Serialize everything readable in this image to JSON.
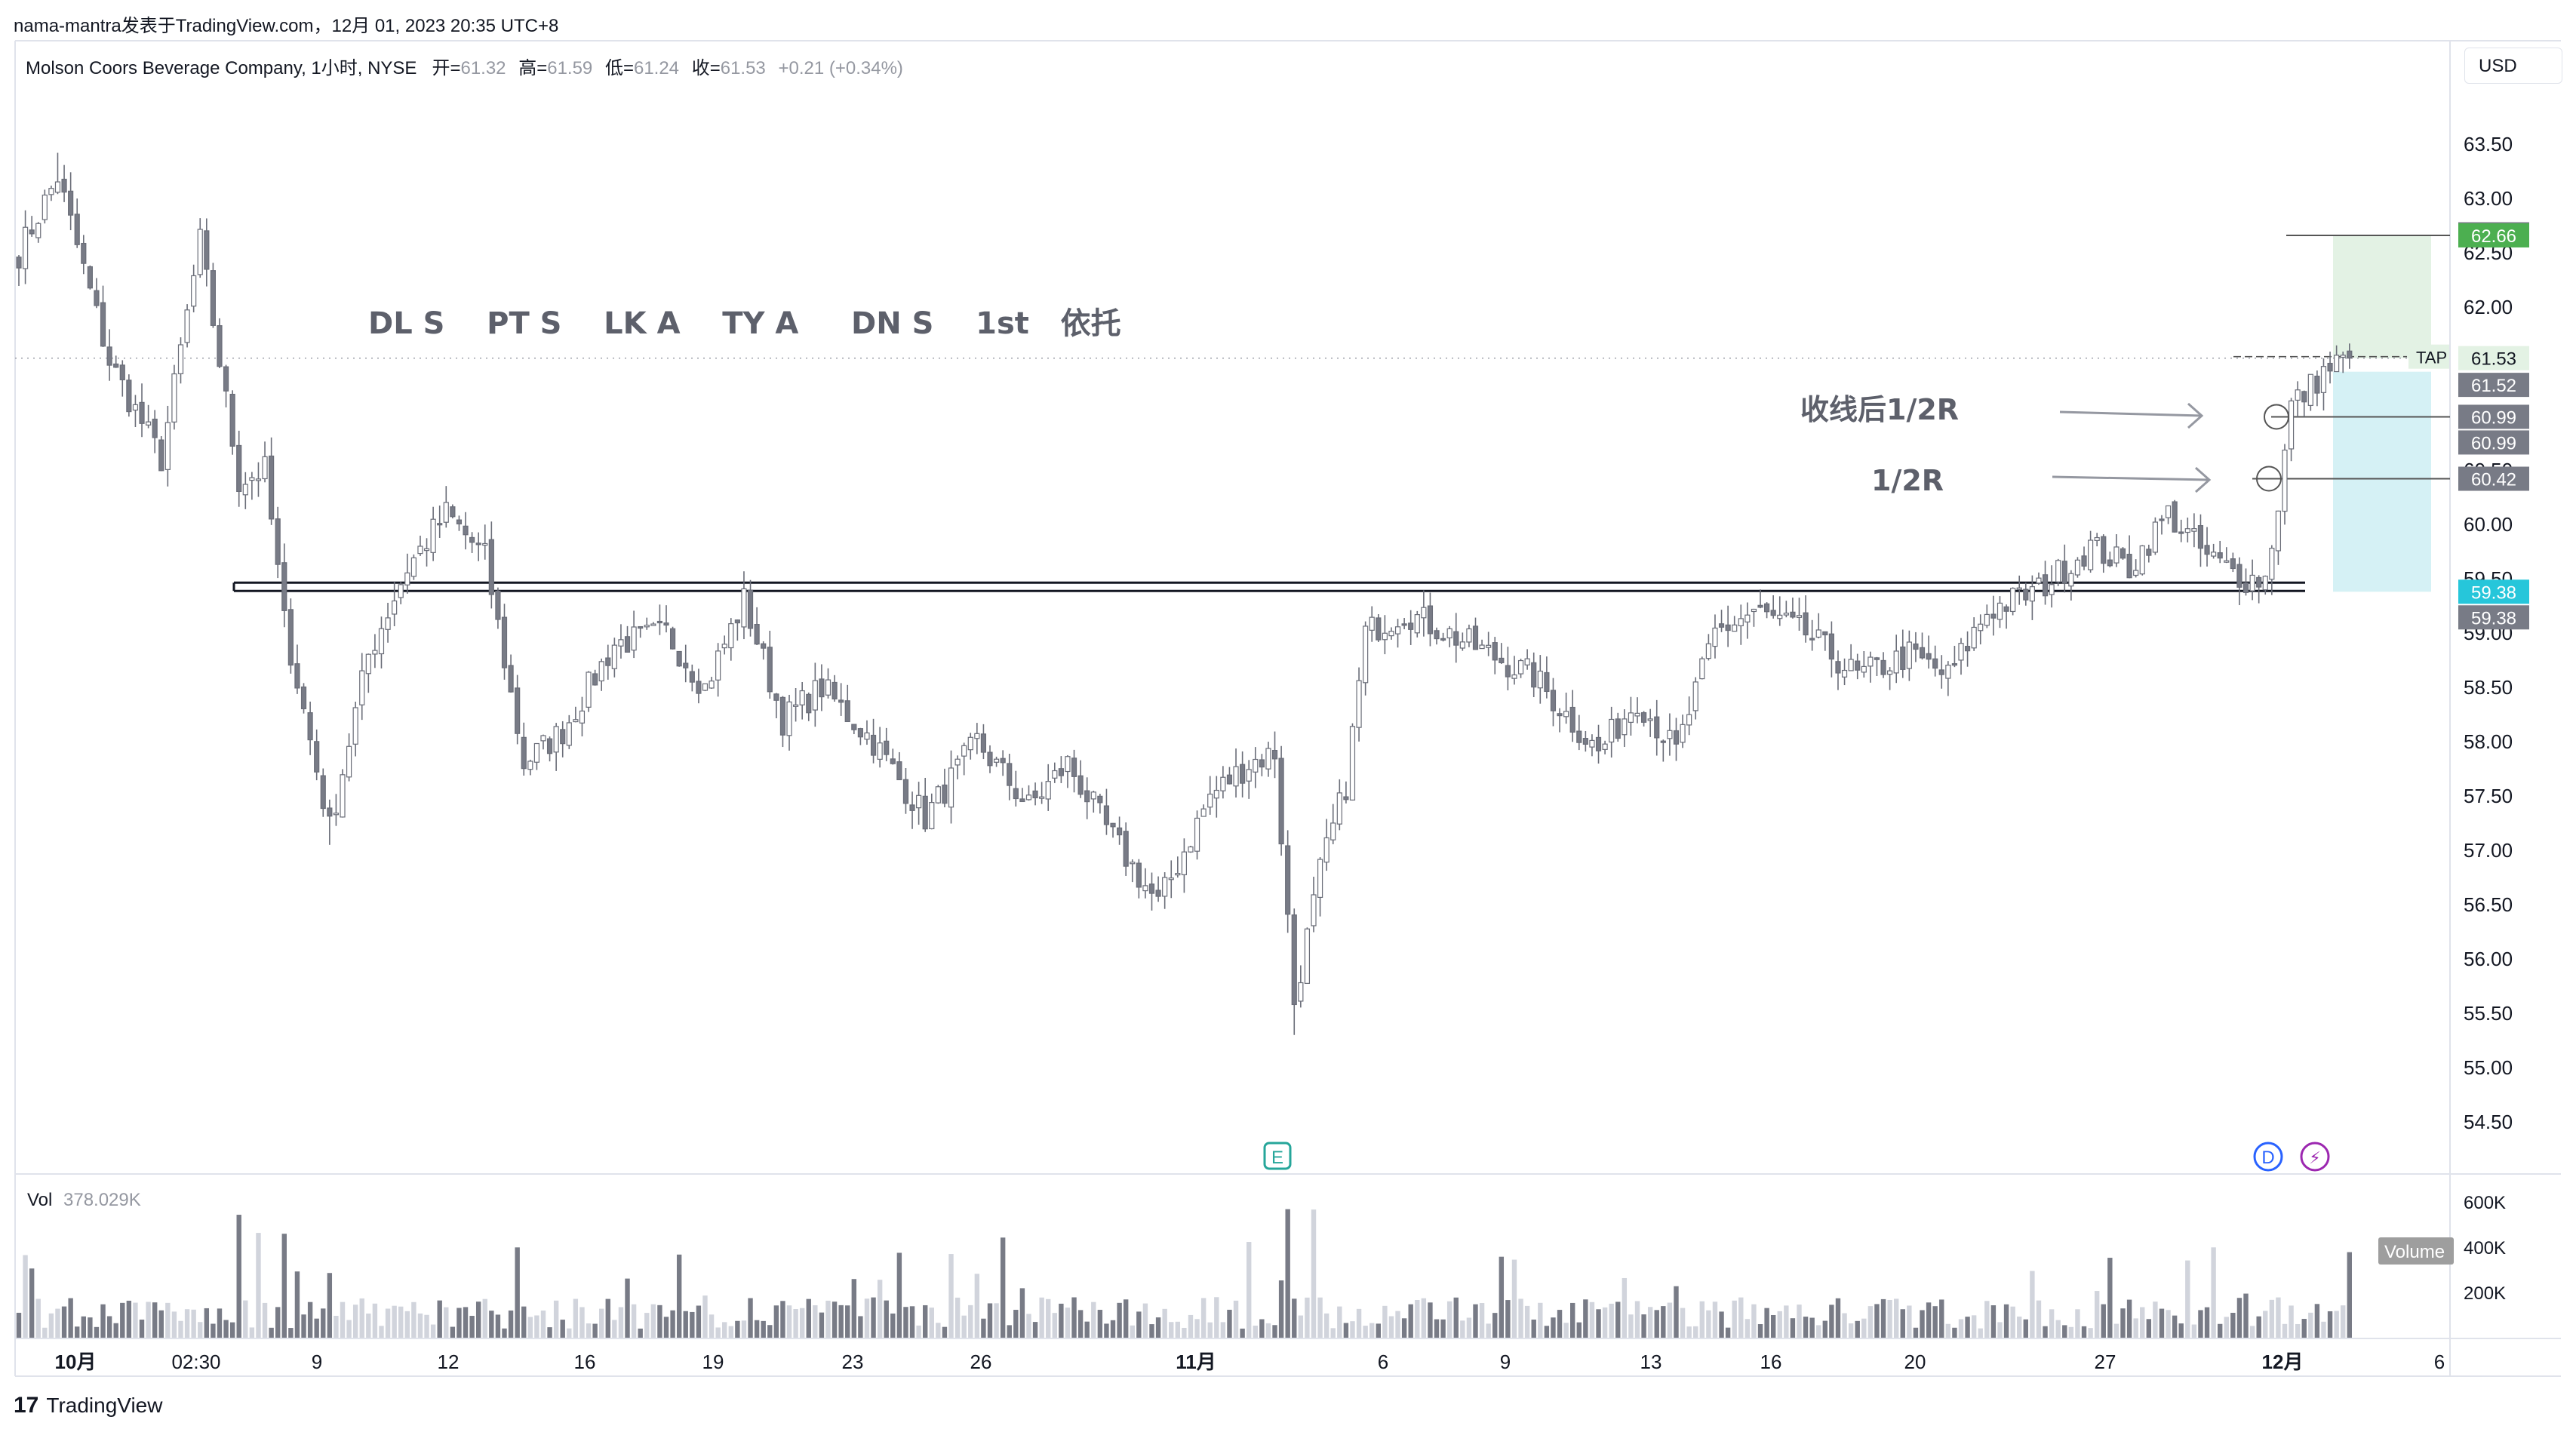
{
  "header": {
    "source_line": "nama-mantra发表于TradingView.com，12月 01, 2023 20:35 UTC+8"
  },
  "legend": {
    "symbol": "Molson Coors Beverage Company, 1小时, NYSE",
    "open_label": "开=",
    "open": "61.32",
    "high_label": "高=",
    "high": "61.59",
    "low_label": "低=",
    "low": "61.24",
    "close_label": "收=",
    "close": "61.53",
    "change": "+0.21 (+0.34%)"
  },
  "currency_button": "USD",
  "footer": {
    "brand": "TradingView",
    "logo": "17"
  },
  "colors": {
    "candle_fill_up": "#ffffff",
    "candle_fill_down": "#787b86",
    "candle_outline": "#6a6d78",
    "volume_up": "#d1d4dc",
    "volume_down": "#787b86",
    "target_zone": "#e3f2e4",
    "stop_zone": "#d5f1f5",
    "green_label": "#4caf50",
    "cyan_label": "#26c6da",
    "grey_label": "#787b86",
    "grid": "#ffffff"
  },
  "chart_data": {
    "type": "candlestick",
    "timeframe": "1小时",
    "ylim": [
      54.2,
      64.0
    ],
    "price_ticks": [
      "63.50",
      "63.00",
      "62.50",
      "62.00",
      "61.50",
      "61.00",
      "60.50",
      "60.00",
      "59.50",
      "59.00",
      "58.50",
      "58.00",
      "57.50",
      "57.00",
      "56.50",
      "56.00",
      "55.50",
      "55.00",
      "54.50"
    ],
    "x_ticks": [
      {
        "label": "10月",
        "bold": true
      },
      {
        "label": "02:30",
        "bold": false
      },
      {
        "label": "9",
        "bold": false
      },
      {
        "label": "12",
        "bold": false
      },
      {
        "label": "16",
        "bold": false
      },
      {
        "label": "19",
        "bold": false
      },
      {
        "label": "23",
        "bold": false
      },
      {
        "label": "26",
        "bold": false
      },
      {
        "label": "11月",
        "bold": true
      },
      {
        "label": "6",
        "bold": false
      },
      {
        "label": "9",
        "bold": false
      },
      {
        "label": "13",
        "bold": false
      },
      {
        "label": "16",
        "bold": false
      },
      {
        "label": "20",
        "bold": false
      },
      {
        "label": "27",
        "bold": false
      },
      {
        "label": "12月",
        "bold": true
      },
      {
        "label": "6",
        "bold": false
      }
    ],
    "anchors": [
      [
        0,
        62.5
      ],
      [
        6,
        63.2
      ],
      [
        14,
        61.5
      ],
      [
        22,
        60.6
      ],
      [
        28,
        62.6
      ],
      [
        34,
        60.4
      ],
      [
        38,
        60.5
      ],
      [
        41,
        59.1
      ],
      [
        48,
        57.2
      ],
      [
        54,
        58.8
      ],
      [
        60,
        59.6
      ],
      [
        66,
        60.1
      ],
      [
        72,
        59.7
      ],
      [
        78,
        57.8
      ],
      [
        84,
        58.1
      ],
      [
        92,
        58.9
      ],
      [
        100,
        59.0
      ],
      [
        106,
        58.5
      ],
      [
        112,
        59.3
      ],
      [
        118,
        58.2
      ],
      [
        124,
        58.5
      ],
      [
        132,
        58.0
      ],
      [
        140,
        57.3
      ],
      [
        148,
        58.0
      ],
      [
        156,
        57.4
      ],
      [
        162,
        57.8
      ],
      [
        168,
        57.2
      ],
      [
        176,
        56.5
      ],
      [
        184,
        57.5
      ],
      [
        190,
        57.8
      ],
      [
        194,
        57.9
      ],
      [
        197,
        55.6
      ],
      [
        201,
        56.8
      ],
      [
        205,
        57.6
      ],
      [
        208,
        59.0
      ],
      [
        214,
        59.2
      ],
      [
        224,
        58.9
      ],
      [
        234,
        58.6
      ],
      [
        244,
        57.9
      ],
      [
        250,
        58.4
      ],
      [
        256,
        57.9
      ],
      [
        262,
        59.0
      ],
      [
        268,
        59.2
      ],
      [
        276,
        59.0
      ],
      [
        284,
        58.6
      ],
      [
        292,
        58.8
      ],
      [
        298,
        58.6
      ],
      [
        304,
        59.2
      ],
      [
        312,
        59.4
      ],
      [
        320,
        59.8
      ],
      [
        326,
        59.6
      ],
      [
        332,
        60.1
      ],
      [
        338,
        59.7
      ],
      [
        344,
        59.5
      ],
      [
        347,
        59.5
      ],
      [
        349,
        60.2
      ],
      [
        351,
        61.1
      ],
      [
        353,
        61.2
      ],
      [
        356,
        61.4
      ],
      [
        360,
        61.55
      ]
    ],
    "last_close": 61.53,
    "volume": {
      "label": "Vol",
      "value": "378.029K",
      "ticks": [
        "600K",
        "400K",
        "200K"
      ],
      "max": 620,
      "button": "Volume"
    },
    "levels": [
      {
        "kind": "zone_line",
        "value": 59.38
      },
      {
        "kind": "target",
        "value": 62.66
      },
      {
        "kind": "stop",
        "value": 59.38
      },
      {
        "kind": "entry",
        "value": 61.53
      }
    ],
    "price_labels": [
      {
        "text": "62.67",
        "value": 62.67,
        "kind": "grey"
      },
      {
        "text": "62.66",
        "value": 62.66,
        "kind": "green"
      },
      {
        "text": "61.53",
        "value": 61.53,
        "kind": "lightgreen"
      },
      {
        "text": "61.52",
        "value": 61.52,
        "kind": "grey",
        "offset": 1
      },
      {
        "text": "60.99",
        "value": 60.99,
        "kind": "grey"
      },
      {
        "text": "60.99",
        "value": 60.99,
        "kind": "grey",
        "offset": 1
      },
      {
        "text": "60.42",
        "value": 60.42,
        "kind": "grey"
      },
      {
        "text": "59.38",
        "value": 59.38,
        "kind": "cyan"
      },
      {
        "text": "59.38",
        "value": 59.38,
        "kind": "grey",
        "offset": 1
      }
    ],
    "annotations": {
      "tickers_text": "DL S    PT S    LK A    TY A     DN S    1st   依托",
      "close_half_r": "收线后1/2R",
      "half_r": "1/2R",
      "tap": "TAP",
      "earnings_marker": "E",
      "dividend_marker": "D",
      "split_marker": "⚡",
      "level_half_r_close": 60.99,
      "level_half_r": 60.42
    }
  }
}
